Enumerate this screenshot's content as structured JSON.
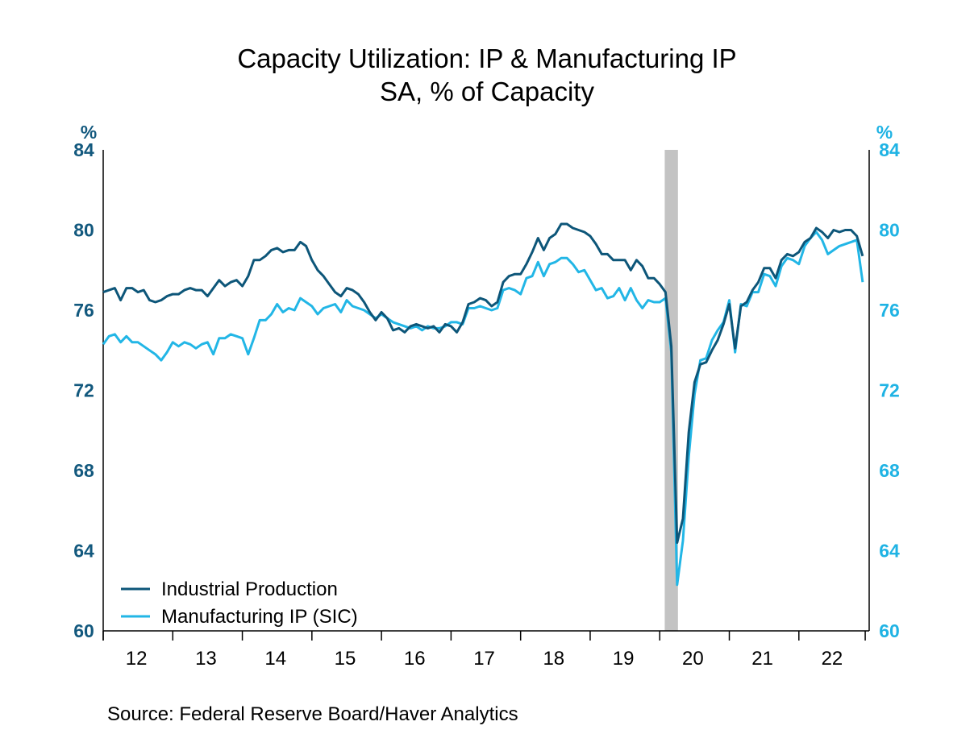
{
  "chart_data": {
    "type": "line",
    "title": "Capacity Utilization: IP & Manufacturing IP",
    "subtitle": "SA, % of Capacity",
    "ylabel_left": "%",
    "ylabel_right": "%",
    "ylim": [
      60,
      84
    ],
    "yticks": [
      60,
      64,
      68,
      72,
      76,
      80,
      84
    ],
    "xtick_labels": [
      "12",
      "13",
      "14",
      "15",
      "16",
      "17",
      "18",
      "19",
      "20",
      "21",
      "22"
    ],
    "x_start": "2012-01",
    "x_end": "2022-12",
    "frequency": "monthly",
    "recession_shading": {
      "start": "2020-02",
      "end": "2020-04",
      "color": "#c3c3c3"
    },
    "grid": false,
    "legend_position": "bottom-left",
    "series": [
      {
        "name": "Industrial Production",
        "color": "#0d5679",
        "axis": "left",
        "values": [
          76.9,
          77.0,
          77.1,
          76.5,
          77.1,
          77.1,
          76.9,
          77.0,
          76.5,
          76.4,
          76.5,
          76.7,
          76.8,
          76.8,
          77.0,
          77.1,
          77.0,
          77.0,
          76.7,
          77.1,
          77.5,
          77.2,
          77.4,
          77.5,
          77.2,
          77.7,
          78.5,
          78.5,
          78.7,
          79.0,
          79.1,
          78.9,
          79.0,
          79.0,
          79.4,
          79.2,
          78.5,
          78.0,
          77.7,
          77.3,
          76.9,
          76.7,
          77.1,
          77.0,
          76.8,
          76.4,
          75.9,
          75.5,
          75.9,
          75.6,
          75.0,
          75.1,
          74.9,
          75.2,
          75.3,
          75.2,
          75.1,
          75.2,
          74.9,
          75.3,
          75.2,
          74.9,
          75.4,
          76.3,
          76.4,
          76.6,
          76.5,
          76.2,
          76.4,
          77.4,
          77.7,
          77.8,
          77.8,
          78.3,
          78.9,
          79.6,
          79.0,
          79.6,
          79.8,
          80.3,
          80.3,
          80.1,
          80.0,
          79.9,
          79.7,
          79.3,
          78.8,
          78.8,
          78.5,
          78.5,
          78.5,
          78.0,
          78.5,
          78.2,
          77.6,
          77.6,
          77.3,
          76.9,
          74.2,
          64.4,
          65.6,
          69.9,
          72.4,
          73.3,
          73.4,
          74.0,
          74.5,
          75.3,
          76.3,
          74.1,
          76.2,
          76.4,
          77.0,
          77.4,
          78.1,
          78.1,
          77.6,
          78.5,
          78.8,
          78.7,
          78.9,
          79.4,
          79.6,
          80.1,
          79.9,
          79.6,
          80.0,
          79.9,
          80.0,
          80.0,
          79.7,
          78.7
        ]
      },
      {
        "name": "Manufacturing IP (SIC)",
        "color": "#22b6e6",
        "axis": "right",
        "values": [
          74.3,
          74.7,
          74.8,
          74.4,
          74.7,
          74.4,
          74.4,
          74.2,
          74.0,
          73.8,
          73.5,
          73.9,
          74.4,
          74.2,
          74.4,
          74.3,
          74.1,
          74.3,
          74.4,
          73.8,
          74.6,
          74.6,
          74.8,
          74.7,
          74.6,
          73.8,
          74.6,
          75.5,
          75.5,
          75.8,
          76.3,
          75.9,
          76.1,
          76.0,
          76.6,
          76.4,
          76.2,
          75.8,
          76.1,
          76.2,
          76.3,
          75.9,
          76.5,
          76.2,
          76.1,
          76.0,
          75.8,
          75.6,
          75.8,
          75.6,
          75.4,
          75.3,
          75.2,
          75.1,
          75.2,
          75.0,
          75.2,
          75.1,
          75.1,
          75.2,
          75.4,
          75.4,
          75.3,
          76.1,
          76.1,
          76.2,
          76.1,
          76.0,
          76.1,
          77.0,
          77.1,
          77.0,
          76.8,
          77.6,
          77.7,
          78.4,
          77.7,
          78.3,
          78.4,
          78.6,
          78.6,
          78.3,
          77.9,
          78.0,
          77.5,
          77.0,
          77.1,
          76.6,
          76.7,
          77.1,
          76.5,
          77.1,
          76.5,
          76.1,
          76.5,
          76.4,
          76.4,
          76.6,
          73.9,
          62.3,
          64.5,
          68.7,
          71.8,
          73.5,
          73.6,
          74.5,
          75.0,
          75.4,
          76.5,
          73.9,
          76.3,
          76.2,
          76.9,
          76.9,
          77.8,
          77.7,
          77.2,
          78.2,
          78.6,
          78.5,
          78.3,
          79.2,
          79.6,
          79.9,
          79.5,
          78.8,
          79.0,
          79.2,
          79.3,
          79.4,
          79.5,
          77.4
        ]
      }
    ],
    "left_axis_color": "#13597e",
    "right_axis_color": "#1fb3e4",
    "source": "Source:  Federal Reserve Board/Haver Analytics"
  }
}
